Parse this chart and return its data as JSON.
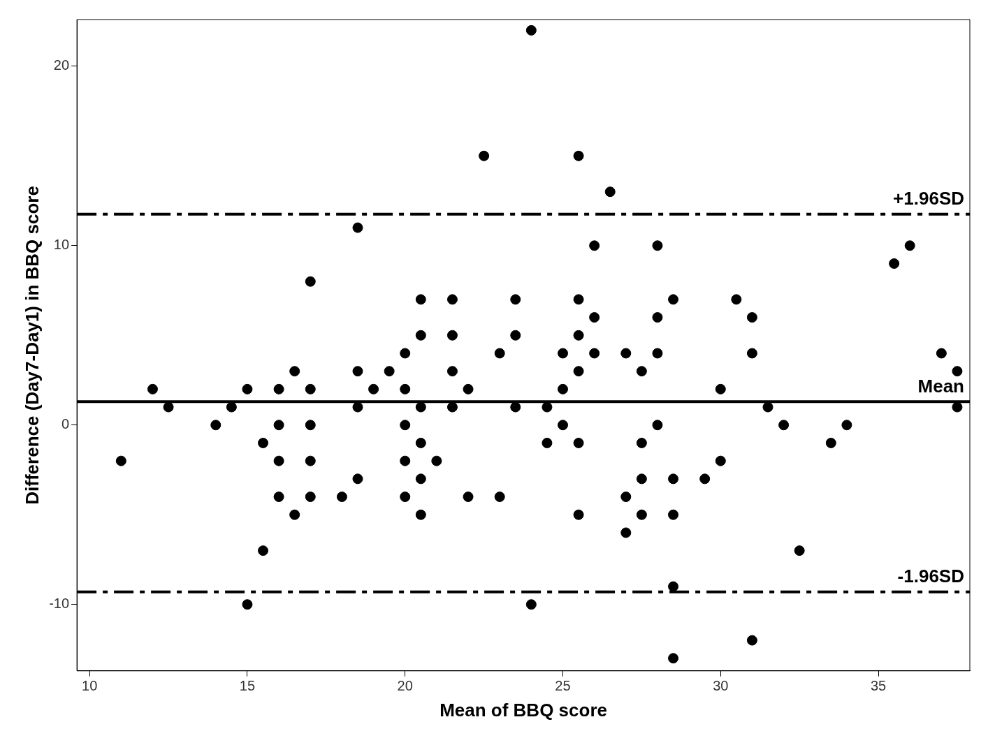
{
  "chart_data": {
    "type": "scatter",
    "xlabel": "Mean of BBQ score",
    "ylabel": "Difference (Day7-Day1) in BBQ score",
    "xlim": [
      9.6,
      37.9
    ],
    "ylim": [
      -13.7,
      22.6
    ],
    "xticks": [
      10,
      15,
      20,
      25,
      30,
      35
    ],
    "yticks": [
      -10,
      0,
      10,
      20
    ],
    "marker": "circle",
    "series": [
      {
        "color": "#000000",
        "x": [
          11,
          12,
          12.5,
          14,
          14.5,
          15,
          15,
          15.5,
          15.5,
          16,
          16,
          16,
          16,
          16.5,
          16.5,
          17,
          17,
          17,
          17,
          17,
          18,
          18.5,
          18.5,
          18.5,
          18.5,
          19,
          19.5,
          20,
          20,
          20,
          20,
          20,
          20.5,
          20.5,
          20.5,
          20.5,
          20.5,
          20.5,
          21,
          21.5,
          21.5,
          21.5,
          21.5,
          22,
          22,
          22.5,
          23,
          23,
          23.5,
          23.5,
          23.5,
          24,
          24,
          24.5,
          24.5,
          25,
          25,
          25,
          25.5,
          25.5,
          25.5,
          25.5,
          25.5,
          25.5,
          26,
          26,
          26,
          26.5,
          27,
          27,
          27,
          27.5,
          27.5,
          27.5,
          27.5,
          28,
          28,
          28,
          28,
          28.5,
          28.5,
          28.5,
          28.5,
          28.5,
          29.5,
          30,
          30,
          30.5,
          31,
          31,
          31,
          31.5,
          32,
          32.5,
          33.5,
          34,
          35.5,
          36,
          37,
          37.5,
          37.5
        ],
        "values": [
          -2,
          2,
          1,
          0,
          1,
          2,
          -10,
          -1,
          -7,
          2,
          0,
          -2,
          -4,
          3,
          -5,
          8,
          2,
          0,
          -2,
          -4,
          -4,
          11,
          3,
          1,
          -3,
          2,
          3,
          4,
          2,
          0,
          -2,
          -4,
          7,
          5,
          1,
          -1,
          -3,
          -5,
          -2,
          7,
          5,
          3,
          1,
          2,
          -4,
          15,
          4,
          -4,
          7,
          5,
          1,
          22,
          -10,
          1,
          -1,
          4,
          2,
          0,
          15,
          7,
          5,
          3,
          -1,
          -5,
          10,
          6,
          4,
          13,
          4,
          -4,
          -6,
          3,
          -1,
          -3,
          -5,
          10,
          6,
          4,
          0,
          7,
          -3,
          -5,
          -9,
          -13,
          -3,
          2,
          -2,
          7,
          6,
          4,
          -12,
          1,
          0,
          -7,
          -1,
          0,
          9,
          10,
          4,
          3,
          1
        ]
      }
    ],
    "ref_lines": [
      {
        "axis": "y",
        "value": 11.75,
        "label": "+1.96SD",
        "line_style": "dashdot"
      },
      {
        "axis": "y",
        "value": 1.3,
        "label": "Mean",
        "line_style": "solid"
      },
      {
        "axis": "y",
        "value": -9.3,
        "label": "-1.96SD",
        "line_style": "dashdot"
      }
    ]
  }
}
